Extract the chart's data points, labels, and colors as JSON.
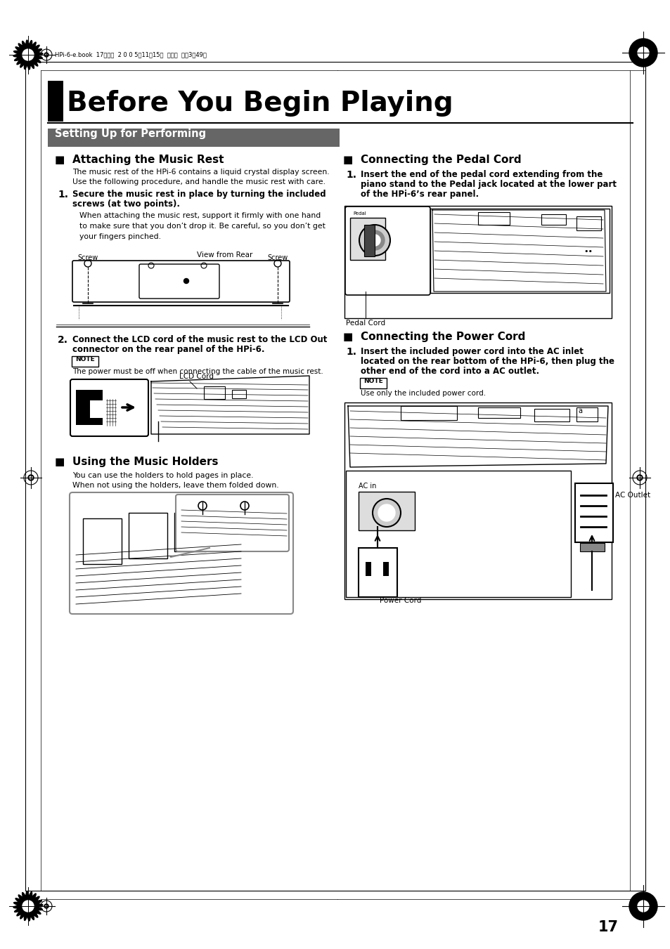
{
  "bg_color": "#ffffff",
  "page_width": 9.54,
  "page_height": 13.51,
  "dpi": 100,
  "header_text": "HPi-6-e.book  17ページ  2 0 0 5年11月15日  火曜日  午後3晄49分",
  "main_title": "Before You Begin Playing",
  "section_banner": "Setting Up for Performing",
  "sub1_title": "Attaching the Music Rest",
  "sub1_body1": "The music rest of the HPi-6 contains a liquid crystal display screen.",
  "sub1_body2": "Use the following procedure, and handle the music rest with care.",
  "sub1_step1_bold_a": "Secure the music rest in place by turning the included",
  "sub1_step1_bold_b": "screws (at two points).",
  "sub1_step1_body": "When attaching the music rest, support it firmly with one hand\nto make sure that you don’t drop it. Be careful, so you don’t get\nyour fingers pinched.",
  "sub1_caption1": "View from Rear",
  "sub1_screw_left": "Screw",
  "sub1_screw_right": "Screw",
  "sub1_step2_bold_a": "Connect the LCD cord of the music rest to the LCD Out",
  "sub1_step2_bold_b": "connector on the rear panel of the HPi-6.",
  "note_label": "NOTE",
  "note_body": "The power must be off when connecting the cable of the music rest.",
  "lcd_cord_label": "LCD Cord",
  "sub2_title": "Using the Music Holders",
  "sub2_body1": "You can use the holders to hold pages in place.",
  "sub2_body2": "When not using the holders, leave them folded down.",
  "right_sub1_title": "Connecting the Pedal Cord",
  "right_sub1_step1_bold_a": "Insert the end of the pedal cord extending from the",
  "right_sub1_step1_bold_b": "piano stand to the Pedal jack located at the lower part",
  "right_sub1_step1_bold_c": "of the HPi-6’s rear panel.",
  "right_pedal_label": "Pedal Cord",
  "right_sub2_title": "Connecting the Power Cord",
  "right_sub2_step1_bold_a": "Insert the included power cord into the AC inlet",
  "right_sub2_step1_bold_b": "located on the rear bottom of the HPi-6, then plug the",
  "right_sub2_step1_bold_c": "other end of the cord into a AC outlet.",
  "right_note_label": "NOTE",
  "right_note_body": "Use only the included power cord.",
  "ac_in_label": "AC in",
  "ac_outlet_label": "AC Outlet",
  "power_cord_label": "Power Cord",
  "page_number": "17",
  "title_bg": "#000000",
  "banner_bg": "#666666",
  "banner_text_color": "#ffffff",
  "body_text_color": "#000000"
}
